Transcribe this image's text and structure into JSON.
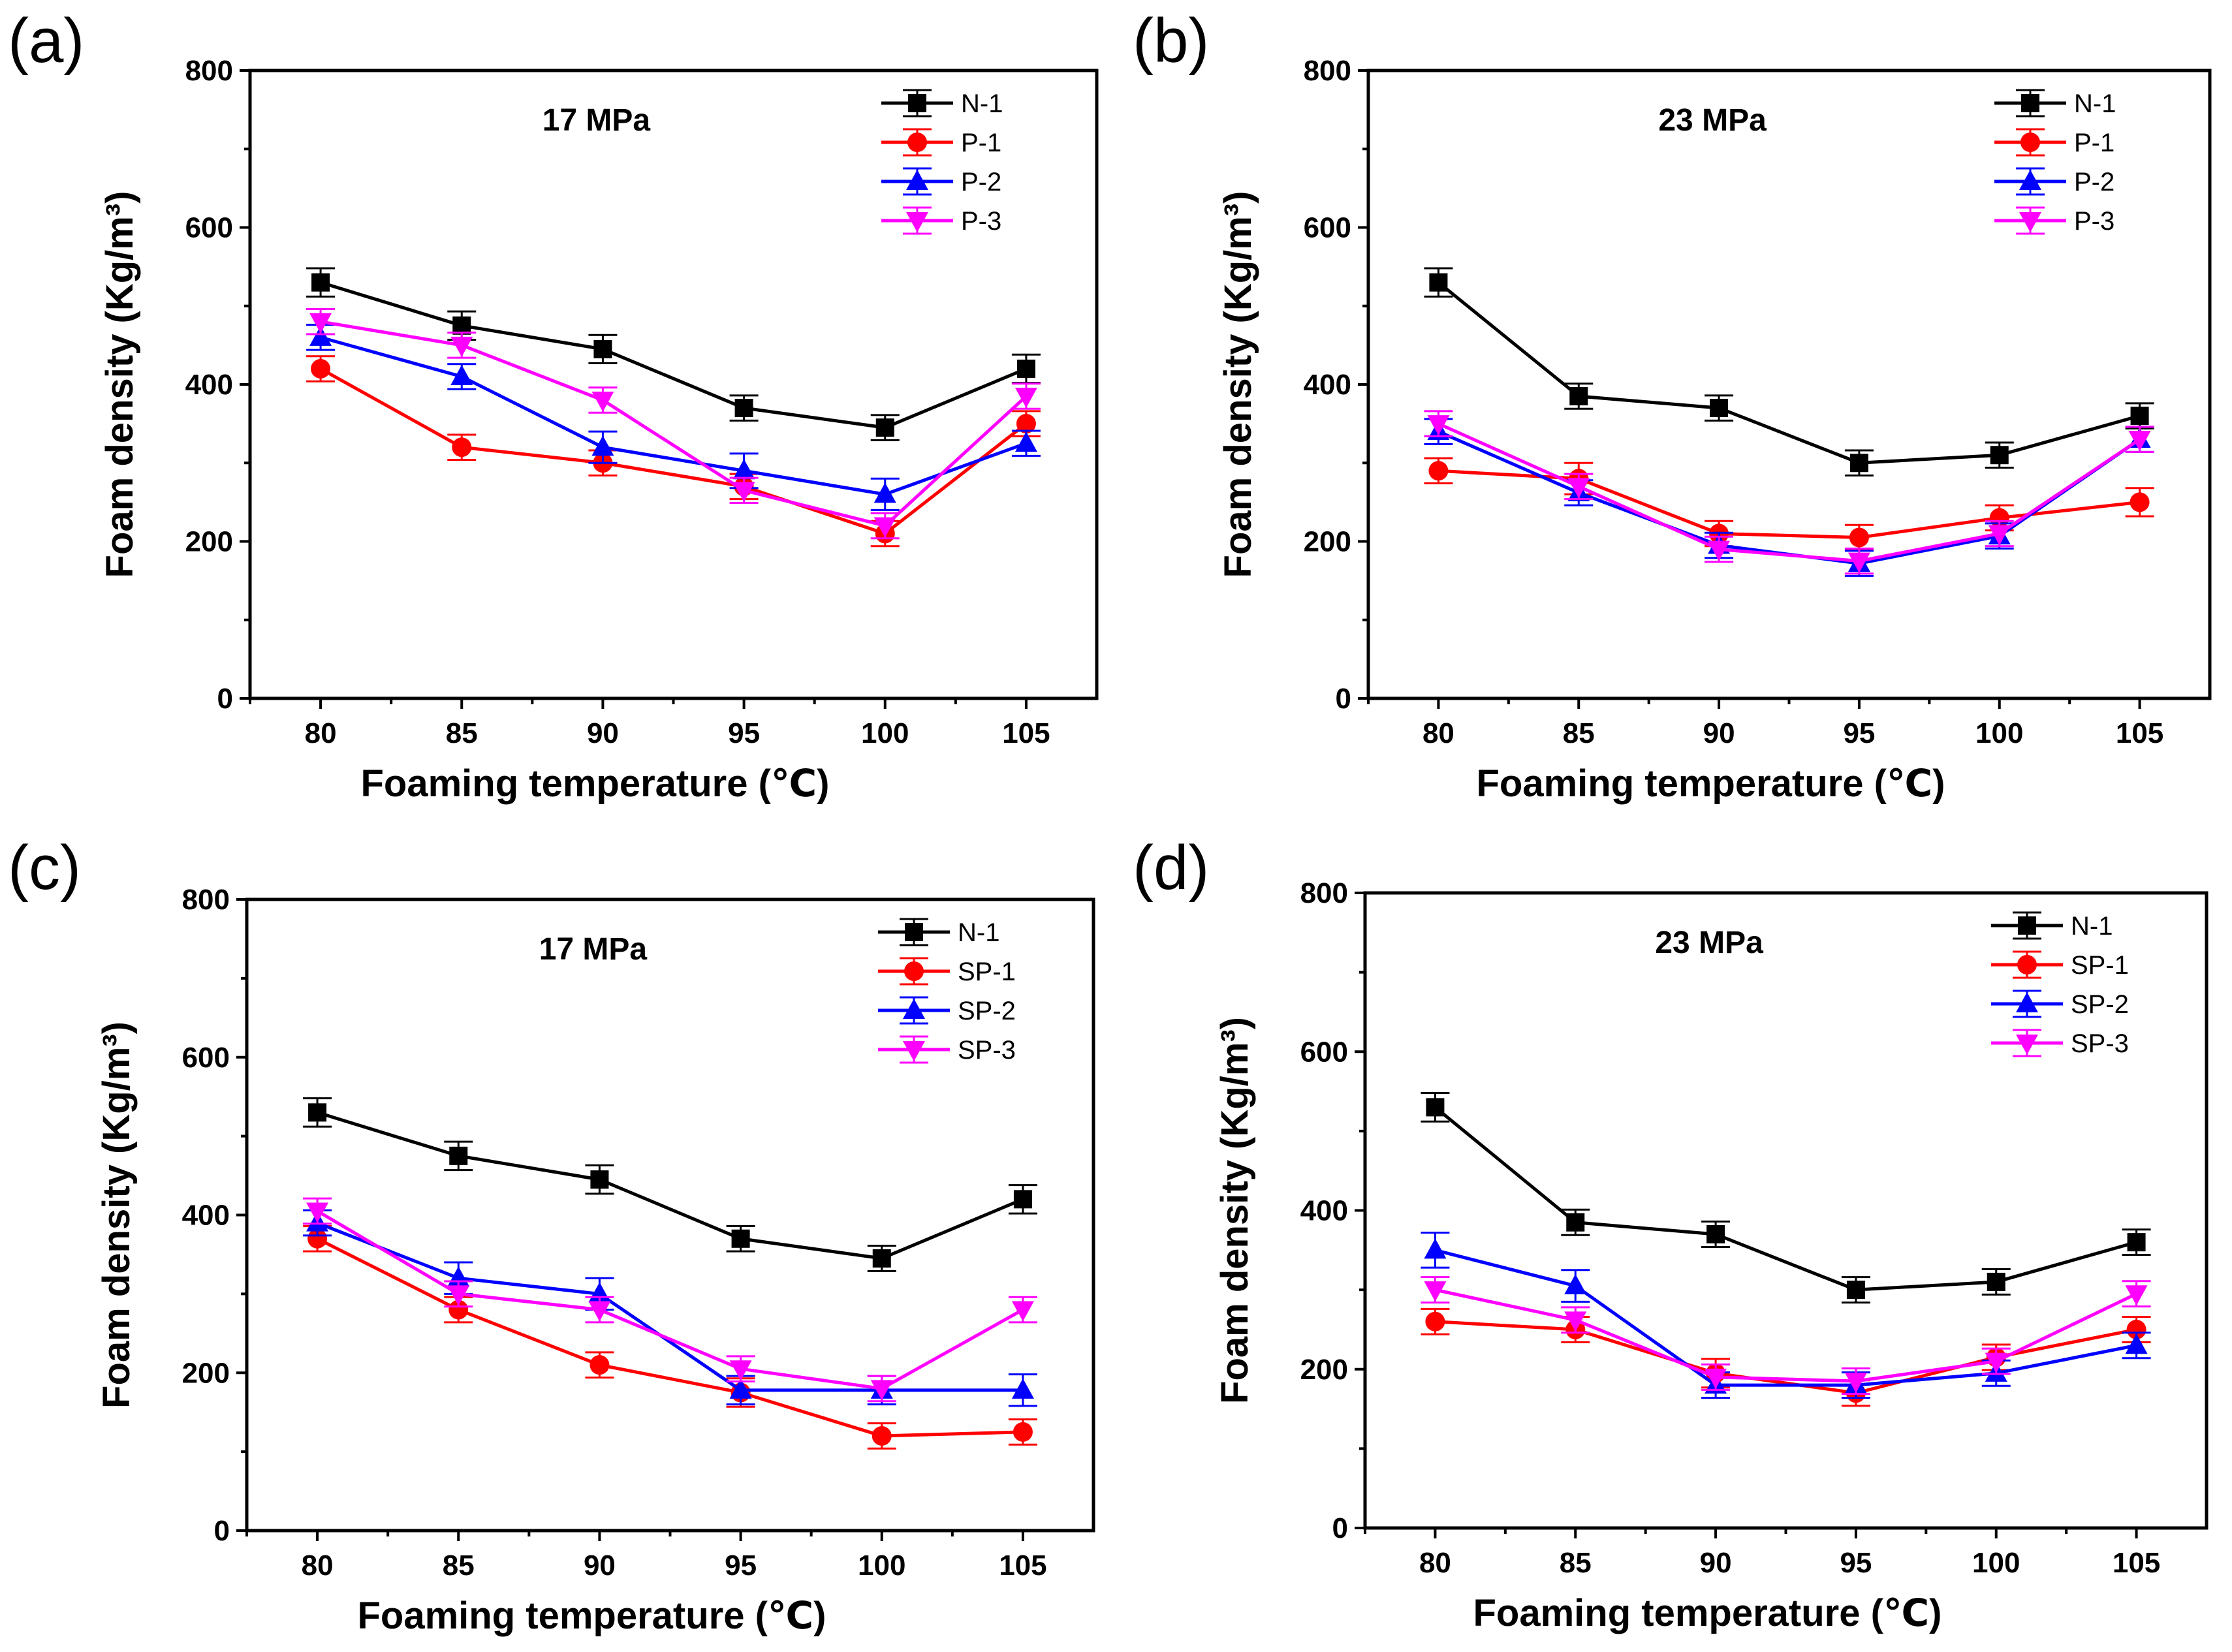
{
  "figure": {
    "description_units": "Foam density in Kg/m^3 versus foaming temperature",
    "colors": {
      "N-1": "#000000",
      "P-1": "#ff0000",
      "P-2": "#0000ff",
      "P-3": "#ff00ff"
    }
  },
  "chart_data": [
    {
      "panel_label": "(a)",
      "type": "line",
      "title": "17 MPa",
      "xlabel": "Foaming temperature (℃)",
      "ylabel": "Foam density (Kg/m³)",
      "x": [
        80,
        85,
        90,
        95,
        100,
        105
      ],
      "xlim": [
        77.5,
        107.5
      ],
      "ylim": [
        0,
        800
      ],
      "xticks": [
        "80",
        "85",
        "90",
        "95",
        "100",
        "105"
      ],
      "yticks": [
        "0",
        "200",
        "400",
        "600",
        "800"
      ],
      "legend_position": "top-right",
      "series": [
        {
          "name": "N-1",
          "color": "#000000",
          "marker": "square",
          "values": [
            530,
            475,
            445,
            370,
            345,
            420
          ],
          "errors": [
            18,
            18,
            18,
            16,
            16,
            18
          ]
        },
        {
          "name": "P-1",
          "color": "#ff0000",
          "marker": "circle",
          "values": [
            420,
            320,
            300,
            270,
            210,
            350
          ],
          "errors": [
            16,
            16,
            16,
            16,
            16,
            16
          ]
        },
        {
          "name": "P-2",
          "color": "#0000ff",
          "marker": "triangle-up",
          "values": [
            460,
            410,
            320,
            290,
            260,
            325
          ],
          "errors": [
            16,
            16,
            20,
            22,
            20,
            16
          ]
        },
        {
          "name": "P-3",
          "color": "#ff00ff",
          "marker": "triangle-down",
          "values": [
            480,
            450,
            380,
            265,
            220,
            385
          ],
          "errors": [
            16,
            16,
            16,
            16,
            16,
            16
          ]
        }
      ]
    },
    {
      "panel_label": "(b)",
      "type": "line",
      "title": "23 MPa",
      "xlabel": "Foaming temperature (℃)",
      "ylabel": "Foam density (Kg/m³)",
      "x": [
        80,
        85,
        90,
        95,
        100,
        105
      ],
      "xlim": [
        77.5,
        107.5
      ],
      "ylim": [
        0,
        800
      ],
      "xticks": [
        "80",
        "85",
        "90",
        "95",
        "100",
        "105"
      ],
      "yticks": [
        "0",
        "200",
        "400",
        "600",
        "800"
      ],
      "legend_position": "top-right",
      "series": [
        {
          "name": "N-1",
          "color": "#000000",
          "marker": "square",
          "values": [
            530,
            385,
            370,
            300,
            310,
            360
          ],
          "errors": [
            18,
            16,
            16,
            16,
            16,
            16
          ]
        },
        {
          "name": "P-1",
          "color": "#ff0000",
          "marker": "circle",
          "values": [
            290,
            280,
            210,
            205,
            230,
            250
          ],
          "errors": [
            16,
            20,
            16,
            16,
            16,
            18
          ]
        },
        {
          "name": "P-2",
          "color": "#0000ff",
          "marker": "triangle-up",
          "values": [
            340,
            262,
            195,
            172,
            207,
            330
          ],
          "errors": [
            16,
            16,
            16,
            16,
            16,
            16
          ]
        },
        {
          "name": "P-3",
          "color": "#ff00ff",
          "marker": "triangle-down",
          "values": [
            350,
            270,
            190,
            175,
            210,
            330
          ],
          "errors": [
            16,
            16,
            16,
            16,
            16,
            16
          ]
        }
      ]
    },
    {
      "panel_label": "(c)",
      "type": "line",
      "title": "17 MPa",
      "xlabel": "Foaming temperature (℃)",
      "ylabel": "Foam density (Kg/m³)",
      "x": [
        80,
        85,
        90,
        95,
        100,
        105
      ],
      "xlim": [
        77.5,
        107.5
      ],
      "ylim": [
        0,
        800
      ],
      "xticks": [
        "80",
        "85",
        "90",
        "95",
        "100",
        "105"
      ],
      "yticks": [
        "0",
        "200",
        "400",
        "600",
        "800"
      ],
      "legend_position": "top-right",
      "series": [
        {
          "name": "N-1",
          "color": "#000000",
          "marker": "square",
          "values": [
            530,
            475,
            445,
            370,
            345,
            420
          ],
          "errors": [
            18,
            18,
            18,
            16,
            16,
            18
          ]
        },
        {
          "name": "SP-1",
          "color": "#ff0000",
          "marker": "circle",
          "values": [
            370,
            280,
            210,
            175,
            120,
            125
          ],
          "errors": [
            16,
            16,
            16,
            18,
            16,
            16
          ]
        },
        {
          "name": "SP-2",
          "color": "#0000ff",
          "marker": "triangle-up",
          "values": [
            390,
            320,
            300,
            178,
            178,
            178
          ],
          "errors": [
            16,
            20,
            20,
            18,
            18,
            20
          ]
        },
        {
          "name": "SP-3",
          "color": "#ff00ff",
          "marker": "triangle-down",
          "values": [
            405,
            300,
            280,
            205,
            180,
            280
          ],
          "errors": [
            16,
            16,
            16,
            16,
            16,
            16
          ]
        }
      ]
    },
    {
      "panel_label": "(d)",
      "type": "line",
      "title": "23 MPa",
      "xlabel": "Foaming temperature (℃)",
      "ylabel": "Foam density (Kg/m³)",
      "x": [
        80,
        85,
        90,
        95,
        100,
        105
      ],
      "xlim": [
        77.5,
        107.5
      ],
      "ylim": [
        0,
        800
      ],
      "xticks": [
        "80",
        "85",
        "90",
        "95",
        "100",
        "105"
      ],
      "yticks": [
        "0",
        "200",
        "400",
        "600",
        "800"
      ],
      "legend_position": "top-right",
      "series": [
        {
          "name": "N-1",
          "color": "#000000",
          "marker": "square",
          "values": [
            530,
            385,
            370,
            300,
            310,
            360
          ],
          "errors": [
            18,
            16,
            16,
            16,
            16,
            16
          ]
        },
        {
          "name": "SP-1",
          "color": "#ff0000",
          "marker": "circle",
          "values": [
            260,
            250,
            195,
            170,
            215,
            250
          ],
          "errors": [
            16,
            16,
            18,
            16,
            16,
            16
          ]
        },
        {
          "name": "SP-2",
          "color": "#0000ff",
          "marker": "triangle-up",
          "values": [
            350,
            305,
            180,
            180,
            195,
            230
          ],
          "errors": [
            22,
            20,
            16,
            16,
            16,
            16
          ]
        },
        {
          "name": "SP-3",
          "color": "#ff00ff",
          "marker": "triangle-down",
          "values": [
            300,
            262,
            190,
            185,
            210,
            295
          ],
          "errors": [
            16,
            16,
            16,
            16,
            16,
            16
          ]
        }
      ]
    }
  ]
}
